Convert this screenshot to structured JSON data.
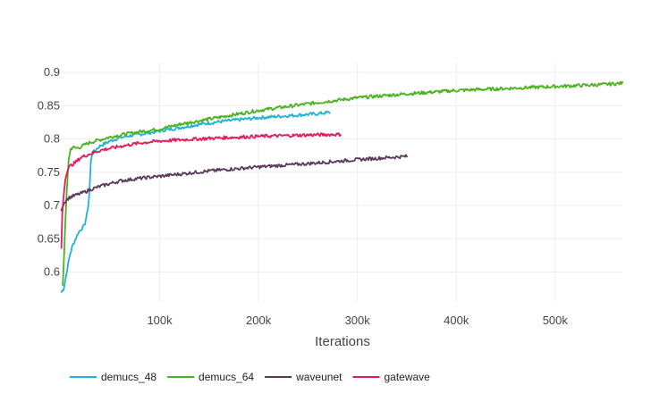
{
  "chart_data": {
    "type": "line",
    "title": "",
    "xlabel": "Iterations",
    "ylabel": "",
    "xlim": [
      0,
      568000
    ],
    "ylim": [
      0.555,
      0.915
    ],
    "xticks": [
      100000,
      200000,
      300000,
      400000,
      500000
    ],
    "xtick_labels": [
      "100k",
      "200k",
      "300k",
      "400k",
      "500k"
    ],
    "yticks": [
      0.6,
      0.65,
      0.7,
      0.75,
      0.8,
      0.85,
      0.9
    ],
    "ytick_labels": [
      "0.6",
      "0.65",
      "0.7",
      "0.75",
      "0.8",
      "0.85",
      "0.9"
    ],
    "grid": true,
    "legend_position": "bottom-left",
    "series": [
      {
        "name": "demucs_48",
        "color": "#1fb3d3",
        "x": [
          500,
          3000,
          6000,
          9000,
          12000,
          15000,
          18000,
          21000,
          24000,
          27000,
          29000,
          30000,
          31000,
          33000,
          36000,
          40000,
          50000,
          60000,
          70000,
          80000,
          100000,
          120000,
          140000,
          160000,
          180000,
          200000,
          220000,
          240000,
          260000,
          272000
        ],
        "y": [
          0.57,
          0.575,
          0.6,
          0.625,
          0.64,
          0.65,
          0.66,
          0.665,
          0.67,
          0.69,
          0.72,
          0.76,
          0.775,
          0.78,
          0.785,
          0.79,
          0.797,
          0.802,
          0.805,
          0.807,
          0.812,
          0.817,
          0.822,
          0.826,
          0.829,
          0.832,
          0.834,
          0.836,
          0.838,
          0.84
        ]
      },
      {
        "name": "demucs_64",
        "color": "#49b21e",
        "x": [
          2000,
          4000,
          6000,
          8000,
          10000,
          12000,
          15000,
          20000,
          25000,
          30000,
          40000,
          50000,
          60000,
          80000,
          100000,
          120000,
          150000,
          200000,
          250000,
          300000,
          350000,
          400000,
          450000,
          500000,
          550000,
          568000
        ],
        "y": [
          0.58,
          0.65,
          0.72,
          0.77,
          0.785,
          0.788,
          0.786,
          0.788,
          0.792,
          0.795,
          0.799,
          0.803,
          0.806,
          0.811,
          0.815,
          0.822,
          0.83,
          0.843,
          0.853,
          0.862,
          0.868,
          0.873,
          0.876,
          0.879,
          0.882,
          0.884
        ]
      },
      {
        "name": "waveunet",
        "color": "#5a3b5c",
        "x": [
          500,
          2000,
          5000,
          10000,
          20000,
          30000,
          40000,
          50000,
          60000,
          80000,
          100000,
          150000,
          200000,
          250000,
          300000,
          350000
        ],
        "y": [
          0.695,
          0.7,
          0.708,
          0.713,
          0.718,
          0.724,
          0.729,
          0.733,
          0.737,
          0.741,
          0.744,
          0.752,
          0.758,
          0.763,
          0.769,
          0.774
        ]
      },
      {
        "name": "gatewave",
        "color": "#e31a5f",
        "x": [
          500,
          1500,
          3000,
          5000,
          7000,
          10000,
          15000,
          20000,
          30000,
          40000,
          60000,
          80000,
          100000,
          150000,
          200000,
          250000,
          283000
        ],
        "y": [
          0.635,
          0.69,
          0.72,
          0.745,
          0.755,
          0.76,
          0.765,
          0.772,
          0.778,
          0.783,
          0.789,
          0.794,
          0.797,
          0.801,
          0.804,
          0.806,
          0.807
        ]
      }
    ]
  }
}
